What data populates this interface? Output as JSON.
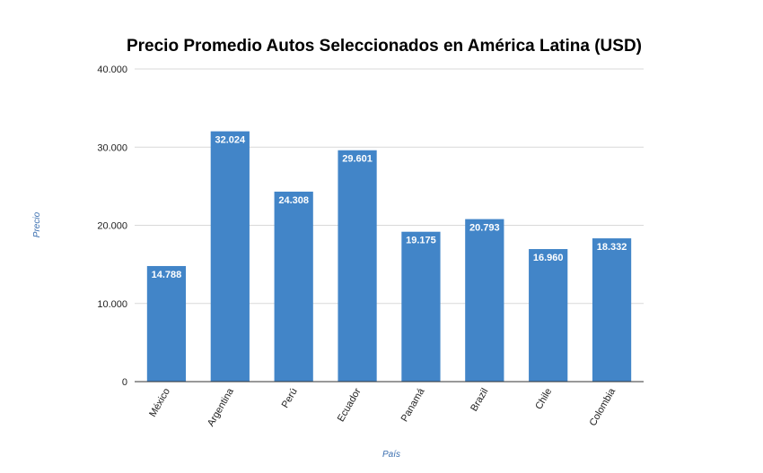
{
  "chart_data": {
    "type": "bar",
    "title": "Precio Promedio Autos Seleccionados en América Latina (USD)",
    "xlabel": "País",
    "ylabel": "Precio",
    "categories": [
      "México",
      "Argentina",
      "Perú",
      "Ecuador",
      "Panamá",
      "Brazil",
      "Chile",
      "Colombia"
    ],
    "values": [
      14788,
      32024,
      24308,
      29601,
      19175,
      20793,
      16960,
      18332
    ],
    "data_labels": [
      "14.788",
      "32.024",
      "24.308",
      "29.601",
      "19.175",
      "20.793",
      "16.960",
      "18.332"
    ],
    "ylim": [
      0,
      40000
    ],
    "yticks": [
      0,
      10000,
      20000,
      30000,
      40000
    ],
    "ytick_labels": [
      "0",
      "10.000",
      "20.000",
      "30.000",
      "40.000"
    ],
    "grid": true,
    "legend": "none",
    "bar_color": "#4285c8"
  }
}
